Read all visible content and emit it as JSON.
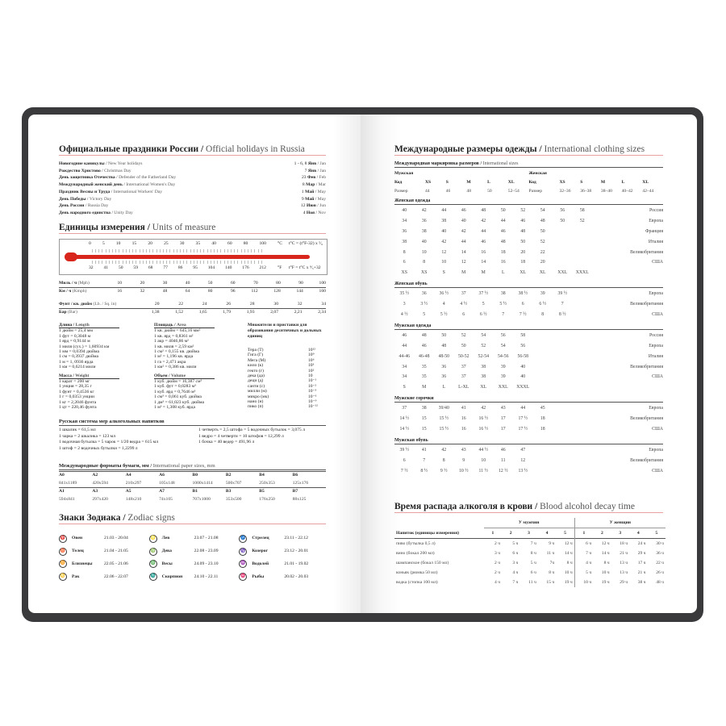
{
  "holidays": {
    "title": "Официальные праздники России",
    "title_en": "Official holidays in Russia",
    "items": [
      [
        "Новогодние каникулы",
        "New Year holidays",
        "1 - 6, 8",
        "Янв",
        "Jan"
      ],
      [
        "Рождество Христово",
        "Christmas Day",
        "7",
        "Янв",
        "Jan"
      ],
      [
        "День защитника Отечества",
        "Defender of the Fatherland Day",
        "23",
        "Фев",
        "Feb"
      ],
      [
        "Международный женский день",
        "International Women's Day",
        "8",
        "Мар",
        "Mar"
      ],
      [
        "Праздник Весны и Труда",
        "International Workers' Day",
        "1",
        "Май",
        "May"
      ],
      [
        "День Победы",
        "Victory Day",
        "9",
        "Май",
        "May"
      ],
      [
        "День России",
        "Russia Day",
        "12",
        "Июн",
        "Jun"
      ],
      [
        "День народного единства",
        "Unity Day",
        "4",
        "Ноя",
        "Nov"
      ]
    ]
  },
  "units": {
    "title": "Единицы измерения",
    "title_en": "Units of measure",
    "celsius": [
      "0",
      "5",
      "10",
      "15",
      "20",
      "25",
      "30",
      "35",
      "40",
      "60",
      "80",
      "100"
    ],
    "c_label": "°C",
    "c_formula": "t°C = (t°F-32) x ⁵⁄₉",
    "fahrenheit": [
      "32",
      "41",
      "50",
      "59",
      "68",
      "77",
      "86",
      "95",
      "104",
      "140",
      "176",
      "212"
    ],
    "f_label": "°F",
    "f_formula": "t°F = t°C x ⁹⁄₅+32",
    "speed": [
      [
        "Миль / ч",
        "(Mph)",
        "10",
        "20",
        "30",
        "40",
        "50",
        "60",
        "70",
        "80",
        "90",
        "100"
      ],
      [
        "Км / ч",
        "(Kmph)",
        "16",
        "32",
        "48",
        "64",
        "80",
        "96",
        "112",
        "128",
        "144",
        "160"
      ]
    ],
    "pressure": [
      [
        "Фунт / кв. дюйм",
        "(Lb. / Sq. in)",
        "20",
        "22",
        "24",
        "26",
        "28",
        "30",
        "32",
        "34"
      ],
      [
        "Бар",
        "(Bar)",
        "1,38",
        "1,52",
        "1,65",
        "1,79",
        "1,93",
        "2,07",
        "2,21",
        "2,34"
      ]
    ],
    "length": {
      "title": "Длина",
      "en": "Length",
      "items": [
        "1 дюйм = 25,4 мм",
        "1 фут = 0,3048 м",
        "1 ярд = 0,9144 м",
        "1 миля (сух.) = 1,60934 км",
        "1 мм = 0,0394 дюйма",
        "1 см = 0,3937 дюйма",
        "1 м = 1, 0936 ярда",
        "1 км = 0,6214 мили"
      ]
    },
    "weight": {
      "title": "Масса",
      "en": "Weight",
      "items": [
        "1 карат = 200 мг",
        "1 унция = 28,35 г",
        "1 фунт = 0,4536 кг",
        "1 г = 0,0353 унции",
        "1 кг = 2,2046 фунта",
        "1 цт = 220,46 фунта"
      ]
    },
    "area": {
      "title": "Площадь",
      "en": "Area",
      "items": [
        "1 кв. дюйм = 645,16 мм²",
        "1 кв. ярд = 0,8361 м²",
        "1 акр = 4046,86 м²",
        "1 кв. миля = 2,59 км²",
        "1 см² = 0,155 кв. дюйма",
        "1 м² = 1,196 кв. ярда",
        "1 га = 2,471 акра",
        "1 км² = 0,386 кв. мили"
      ]
    },
    "volume": {
      "title": "Объем",
      "en": "Volume",
      "items": [
        "1 куб. дюйм = 16,387 см³",
        "1 куб. фут = 0,0283 м³",
        "1 куб. ярд = 0,7646 м³",
        "1 см³ = 0,061 куб. дюйма",
        "1 дм³ = 61,023 куб. дюйма",
        "1 м³ = 1,308 куб. ярда"
      ]
    },
    "prefixes": {
      "title": "Множители и приставки для образования десятичных и дольных единиц",
      "items": [
        [
          "Тера (Т)",
          "10¹²"
        ],
        [
          "Гига (Г)",
          "10⁹"
        ],
        [
          "Мега (М)",
          "10⁶"
        ],
        [
          "кило (к)",
          "10³"
        ],
        [
          "гекто (г)",
          "10²"
        ],
        [
          "дека (да)",
          "10"
        ],
        [
          "деци (д)",
          "10⁻¹"
        ],
        [
          "санти (с)",
          "10⁻²"
        ],
        [
          "милли (м)",
          "10⁻³"
        ],
        [
          "микро (мк)",
          "10⁻⁶"
        ],
        [
          "нано (н)",
          "10⁻⁹"
        ],
        [
          "пико (п)",
          "10⁻¹²"
        ]
      ]
    }
  },
  "alcohol_measures": {
    "title": "Русская система мер алкогольных напитков",
    "left": [
      "1 шкалик = 61,5 мл",
      "1 чарка = 2 шкалика = 123 мл",
      "1 водочная бутылка = 5 чарок = 1/20 ведра = 615 мл",
      "1 штоф = 2 водочных бутылки = 1,2299 л"
    ],
    "right": [
      "1 четверть = 2,5 штофа = 5 водочных бутылок = 3,075 л",
      "1 ведро = 4 четверти = 10 штофов = 12,299 л",
      "1 бочка = 40 ведер = 491,96 л"
    ]
  },
  "paper": {
    "title": "Международные форматы бумаги, мм",
    "title_en": "International paper sizes, mm",
    "rows": [
      [
        "A0",
        "A2",
        "A4",
        "A6",
        "B0",
        "B2",
        "B4",
        "B6"
      ],
      [
        "841x1189",
        "420x594",
        "210x297",
        "105x148",
        "1000x1414",
        "500x707",
        "250x353",
        "125x176"
      ],
      [
        "A1",
        "A3",
        "A5",
        "A7",
        "B1",
        "B3",
        "B5",
        "B7"
      ],
      [
        "594x841",
        "297x420",
        "148x210",
        "74x105",
        "707x1000",
        "353x500",
        "176x250",
        "88x125"
      ]
    ]
  },
  "zodiac": {
    "title": "Знаки Зодиака",
    "title_en": "Zodiac signs",
    "items": [
      [
        "♈",
        "Овен",
        "21.03 - 20.04"
      ],
      [
        "♉",
        "Телец",
        "21.04 - 21.05"
      ],
      [
        "♊",
        "Близнецы",
        "22.05 - 21.06"
      ],
      [
        "♋",
        "Рак",
        "22.06 - 22.07"
      ],
      [
        "♌",
        "Лев",
        "23.07 - 21.08"
      ],
      [
        "♍",
        "Дева",
        "22.08 - 23.09"
      ],
      [
        "♎",
        "Весы",
        "24.09 - 23.10"
      ],
      [
        "♏",
        "Скорпион",
        "24.10 - 22.11"
      ],
      [
        "♐",
        "Стрелец",
        "23.11 - 22.12"
      ],
      [
        "♑",
        "Козерог",
        "23.12 - 20.01"
      ],
      [
        "♒",
        "Водолей",
        "21.01 - 19.02"
      ],
      [
        "♓",
        "Рыбы",
        "20.02 - 20.03"
      ]
    ]
  },
  "clothing": {
    "title": "Международные размеры одежды",
    "title_en": "International clothing sizes",
    "intl": {
      "title": "Международная маркировка размеров",
      "title_en": "International sizes",
      "men": "Мужская",
      "women": "Женская",
      "code": "Код",
      "size": "Размер",
      "men_codes": [
        "XS",
        "S",
        "M",
        "L",
        "XL"
      ],
      "men_sizes": [
        "44",
        "46",
        "48",
        "50",
        "52–54"
      ],
      "women_codes": [
        "XS",
        "S",
        "M",
        "L",
        "XL"
      ],
      "women_sizes": [
        "32–36",
        "36–38",
        "38–40",
        "40–42",
        "42–44"
      ]
    },
    "sections": [
      {
        "title": "Женская одежда",
        "rows": [
          [
            "40",
            "42",
            "44",
            "46",
            "48",
            "50",
            "52",
            "54",
            "56",
            "58",
            "Россия"
          ],
          [
            "34",
            "36",
            "38",
            "40",
            "42",
            "44",
            "46",
            "48",
            "50",
            "52",
            "Европа"
          ],
          [
            "36",
            "38",
            "40",
            "42",
            "44",
            "46",
            "48",
            "50",
            "",
            "",
            "Франция"
          ],
          [
            "38",
            "40",
            "42",
            "44",
            "46",
            "48",
            "50",
            "52",
            "",
            "",
            "Италия"
          ],
          [
            "8",
            "10",
            "12",
            "14",
            "16",
            "18",
            "20",
            "22",
            "",
            "",
            "Великобритания"
          ],
          [
            "6",
            "8",
            "10",
            "12",
            "14",
            "16",
            "18",
            "20",
            "",
            "",
            "США"
          ],
          [
            "XS",
            "XS",
            "S",
            "M",
            "M",
            "L",
            "XL",
            "XL",
            "XXL",
            "XXXL",
            ""
          ]
        ]
      },
      {
        "title": "Женская обувь",
        "rows": [
          [
            "35 ½",
            "36",
            "36 ½",
            "37",
            "37 ½",
            "38",
            "38 ½",
            "39",
            "39 ½",
            "",
            "Европа"
          ],
          [
            "3",
            "3 ½",
            "4",
            "4 ½",
            "5",
            "5 ½",
            "6",
            "6 ½",
            "7",
            "",
            "Великобритания"
          ],
          [
            "4 ½",
            "5",
            "5 ½",
            "6",
            "6 ½",
            "7",
            "7 ½",
            "8",
            "8 ½",
            "",
            "США"
          ]
        ]
      },
      {
        "title": "Мужская одежда",
        "rows": [
          [
            "46",
            "48",
            "50",
            "52",
            "54",
            "56",
            "58",
            "",
            "",
            "",
            "Россия"
          ],
          [
            "44",
            "46",
            "48",
            "50",
            "52",
            "54",
            "56",
            "",
            "",
            "",
            "Европа"
          ],
          [
            "44-46",
            "46-48",
            "48-50",
            "50-52",
            "52-54",
            "54-56",
            "56-58",
            "",
            "",
            "",
            "Италия"
          ],
          [
            "34",
            "35",
            "36",
            "37",
            "38",
            "39",
            "40",
            "",
            "",
            "",
            "Великобритания"
          ],
          [
            "34",
            "35",
            "36",
            "37",
            "38",
            "39",
            "40",
            "",
            "",
            "",
            "США"
          ],
          [
            "S",
            "M",
            "L",
            "L-XL",
            "XL",
            "XXL",
            "XXXL",
            "",
            "",
            "",
            ""
          ]
        ]
      },
      {
        "title": "Мужские сорочки",
        "rows": [
          [
            "37",
            "38",
            "39/40",
            "41",
            "42",
            "43",
            "44",
            "45",
            "",
            "",
            "Европа"
          ],
          [
            "14 ½",
            "15",
            "15 ½",
            "16",
            "16 ½",
            "17",
            "17 ½",
            "18",
            "",
            "",
            "Великобритания"
          ],
          [
            "14 ½",
            "15",
            "15 ½",
            "16",
            "16 ½",
            "17",
            "17 ½",
            "18",
            "",
            "",
            "США"
          ]
        ]
      },
      {
        "title": "Мужская обувь",
        "rows": [
          [
            "39 ½",
            "41",
            "42",
            "43",
            "44 ½",
            "46",
            "47",
            "",
            "",
            "",
            "Европа"
          ],
          [
            "6",
            "7",
            "8",
            "9",
            "10",
            "11",
            "12",
            "",
            "",
            "",
            "Великобритания"
          ],
          [
            "7 ½",
            "8 ½",
            "9 ½",
            "10 ½",
            "11 ½",
            "12 ½",
            "13 ½",
            "",
            "",
            "",
            "США"
          ]
        ]
      }
    ]
  },
  "bac": {
    "title": "Время распада алкоголя в крови",
    "title_en": "Blood alcohol decay time",
    "men": "У мужчин",
    "women": "У женщин",
    "header": [
      "Напиток (единицы измерения)",
      "1",
      "2",
      "3",
      "4",
      "5",
      "1",
      "2",
      "3",
      "4",
      "5"
    ],
    "rows": [
      [
        "пиво (бутылка 0,5 л)",
        "2 ч",
        "5 ч",
        "7 ч",
        "9 ч",
        "12 ч",
        "6 ч",
        "12 ч",
        "18 ч",
        "24 ч",
        "30 ч"
      ],
      [
        "вино (бокал 200 мл)",
        "3 ч",
        "6 ч",
        "8 ч",
        "11 ч",
        "14 ч",
        "7 ч",
        "14 ч",
        "21 ч",
        "29 ч",
        "36 ч"
      ],
      [
        "шампанское (бокал 150 мл)",
        "2 ч",
        "3 ч",
        "5 ч",
        "7ч",
        "8 ч",
        "4 ч",
        "8 ч",
        "13 ч",
        "17 ч",
        "22 ч"
      ],
      [
        "коньяк (рюмка 50 мл)",
        "2 ч",
        "4 ч",
        "6 ч",
        "8 ч",
        "10 ч",
        "5 ч",
        "10 ч",
        "13 ч",
        "21 ч",
        "26 ч"
      ],
      [
        "водка (стопка 100 мл)",
        "4 ч",
        "7 ч",
        "11 ч",
        "15 ч",
        "19 ч",
        "10 ч",
        "19 ч",
        "29 ч",
        "38 ч",
        "48 ч"
      ]
    ]
  },
  "colors": {
    "accent": "#d9261c",
    "cover": "#3a3a3c"
  }
}
